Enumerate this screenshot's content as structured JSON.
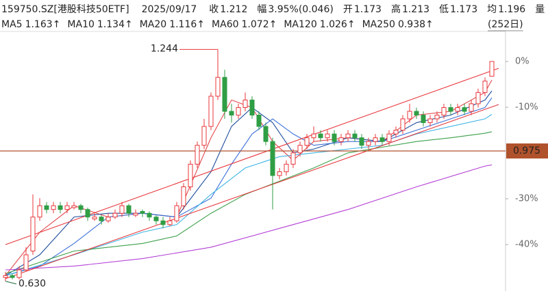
{
  "chart_data": {
    "type": "candlestick",
    "quote": {
      "symbol": "159750.SZ[港股科技50ETF]",
      "date": "2025/09/17",
      "close_label": "收",
      "close": 1.212,
      "change_label": "幅",
      "change": "3.95%(0.046)",
      "open_label": "开",
      "open": 1.173,
      "high_label": "高",
      "high": 1.213,
      "low_label": "低",
      "low": 1.173,
      "avg_label": "均",
      "avg": 1.196,
      "volume_label": "量"
    },
    "period": "(252日)",
    "up_color": "#e8353a",
    "down_color": "#2f9e44",
    "ylim": [
      0.615,
      1.288
    ],
    "yticks": [
      {
        "value": 0,
        "label": "0%"
      },
      {
        "value": -10,
        "label": "-10%"
      },
      {
        "value": -30,
        "label": "-30%"
      },
      {
        "value": -40,
        "label": "-40%"
      }
    ],
    "candles": [
      [
        0.64,
        0.655,
        0.63,
        0.645
      ],
      [
        0.645,
        0.65,
        0.635,
        0.64
      ],
      [
        0.64,
        0.67,
        0.635,
        0.66
      ],
      [
        0.66,
        0.72,
        0.655,
        0.7
      ],
      [
        0.71,
        0.86,
        0.7,
        0.8
      ],
      [
        0.8,
        0.85,
        0.79,
        0.83
      ],
      [
        0.83,
        0.84,
        0.81,
        0.82
      ],
      [
        0.82,
        0.84,
        0.81,
        0.83
      ],
      [
        0.83,
        0.84,
        0.81,
        0.82
      ],
      [
        0.82,
        0.84,
        0.81,
        0.83
      ],
      [
        0.825,
        0.84,
        0.82,
        0.83
      ],
      [
        0.83,
        0.835,
        0.81,
        0.82
      ],
      [
        0.82,
        0.825,
        0.79,
        0.8
      ],
      [
        0.795,
        0.81,
        0.79,
        0.8
      ],
      [
        0.8,
        0.805,
        0.78,
        0.79
      ],
      [
        0.79,
        0.81,
        0.785,
        0.8
      ],
      [
        0.8,
        0.82,
        0.795,
        0.81
      ],
      [
        0.81,
        0.84,
        0.8,
        0.83
      ],
      [
        0.83,
        0.835,
        0.8,
        0.81
      ],
      [
        0.805,
        0.82,
        0.8,
        0.81
      ],
      [
        0.815,
        0.82,
        0.8,
        0.81
      ],
      [
        0.81,
        0.815,
        0.79,
        0.8
      ],
      [
        0.8,
        0.805,
        0.78,
        0.79
      ],
      [
        0.79,
        0.8,
        0.77,
        0.78
      ],
      [
        0.78,
        0.8,
        0.775,
        0.79
      ],
      [
        0.79,
        0.84,
        0.785,
        0.83
      ],
      [
        0.83,
        0.89,
        0.82,
        0.88
      ],
      [
        0.88,
        0.95,
        0.87,
        0.94
      ],
      [
        0.94,
        1.0,
        0.93,
        0.99
      ],
      [
        0.99,
        1.06,
        0.98,
        1.04
      ],
      [
        1.04,
        1.13,
        1.03,
        1.12
      ],
      [
        1.12,
        1.244,
        1.11,
        1.17
      ],
      [
        1.17,
        1.19,
        1.06,
        1.08
      ],
      [
        1.08,
        1.1,
        1.05,
        1.07
      ],
      [
        1.07,
        1.1,
        1.06,
        1.09
      ],
      [
        1.09,
        1.13,
        1.08,
        1.11
      ],
      [
        1.11,
        1.12,
        1.06,
        1.07
      ],
      [
        1.07,
        1.08,
        1.03,
        1.04
      ],
      [
        1.04,
        1.05,
        0.99,
        1.0
      ],
      [
        1.0,
        1.01,
        0.82,
        0.91
      ],
      [
        0.91,
        0.93,
        0.9,
        0.92
      ],
      [
        0.92,
        0.95,
        0.91,
        0.94
      ],
      [
        0.94,
        0.98,
        0.93,
        0.97
      ],
      [
        0.97,
        1.0,
        0.96,
        0.99
      ],
      [
        0.99,
        1.02,
        0.98,
        1.01
      ],
      [
        1.01,
        1.04,
        1.0,
        1.02
      ],
      [
        1.02,
        1.03,
        1.0,
        1.01
      ],
      [
        1.01,
        1.03,
        1.0,
        1.02
      ],
      [
        1.02,
        1.03,
        0.99,
        1.0
      ],
      [
        1.0,
        1.02,
        0.99,
        1.01
      ],
      [
        1.01,
        1.03,
        1.0,
        1.02
      ],
      [
        1.02,
        1.03,
        1.0,
        1.01
      ],
      [
        1.01,
        1.02,
        0.98,
        0.99
      ],
      [
        0.99,
        1.01,
        0.98,
        1.0
      ],
      [
        1.0,
        1.02,
        0.99,
        1.01
      ],
      [
        1.01,
        1.02,
        0.99,
        1.0
      ],
      [
        1.0,
        1.03,
        0.99,
        1.02
      ],
      [
        1.02,
        1.04,
        1.01,
        1.03
      ],
      [
        1.03,
        1.07,
        1.02,
        1.06
      ],
      [
        1.06,
        1.1,
        1.05,
        1.08
      ],
      [
        1.08,
        1.09,
        1.06,
        1.07
      ],
      [
        1.07,
        1.08,
        1.04,
        1.05
      ],
      [
        1.05,
        1.07,
        1.04,
        1.06
      ],
      [
        1.06,
        1.08,
        1.05,
        1.07
      ],
      [
        1.07,
        1.1,
        1.06,
        1.09
      ],
      [
        1.09,
        1.1,
        1.07,
        1.08
      ],
      [
        1.08,
        1.1,
        1.07,
        1.09
      ],
      [
        1.09,
        1.1,
        1.07,
        1.08
      ],
      [
        1.08,
        1.11,
        1.07,
        1.1
      ],
      [
        1.1,
        1.14,
        1.09,
        1.13
      ],
      [
        1.13,
        1.17,
        1.12,
        1.16
      ],
      [
        1.173,
        1.213,
        1.173,
        1.212
      ]
    ],
    "min_label": "0.630",
    "ma_lines": [
      {
        "name": "MA5",
        "latest": 1.163,
        "arrow": "↑",
        "color": "#e2474b",
        "x": [
          0,
          5,
          10,
          15,
          20,
          25,
          30,
          33,
          36,
          39,
          42,
          45,
          50,
          55,
          60,
          65,
          70,
          71
        ],
        "values": [
          0.645,
          0.76,
          0.83,
          0.8,
          0.81,
          0.8,
          1.01,
          1.11,
          1.09,
          1.0,
          0.95,
          1.0,
          1.01,
          1.0,
          1.07,
          1.08,
          1.13,
          1.163
        ]
      },
      {
        "name": "MA10",
        "latest": 1.134,
        "arrow": "↑",
        "color": "#1f4e9c",
        "x": [
          0,
          5,
          10,
          15,
          20,
          25,
          30,
          33,
          36,
          39,
          42,
          45,
          50,
          55,
          60,
          65,
          70,
          71
        ],
        "values": [
          0.645,
          0.7,
          0.8,
          0.81,
          0.81,
          0.8,
          0.92,
          1.04,
          1.09,
          1.05,
          0.97,
          0.98,
          1.01,
          1.0,
          1.05,
          1.07,
          1.11,
          1.134
        ]
      },
      {
        "name": "MA20",
        "latest": 1.116,
        "arrow": "↑",
        "color": "#3a6fd8",
        "x": [
          0,
          5,
          10,
          15,
          20,
          25,
          30,
          33,
          36,
          39,
          42,
          45,
          50,
          55,
          60,
          65,
          70,
          71
        ],
        "values": [
          0.645,
          0.67,
          0.73,
          0.8,
          0.81,
          0.8,
          0.85,
          0.94,
          1.02,
          1.06,
          1.02,
          0.99,
          1.0,
          1.0,
          1.03,
          1.06,
          1.09,
          1.116
        ]
      },
      {
        "name": "MA60",
        "latest": 1.072,
        "arrow": "↑",
        "color": "#3fb4e6",
        "x": [
          0,
          10,
          20,
          25,
          30,
          35,
          40,
          45,
          50,
          55,
          60,
          65,
          70,
          71
        ],
        "values": [
          0.645,
          0.7,
          0.76,
          0.78,
          0.86,
          0.93,
          0.96,
          0.97,
          0.98,
          0.99,
          1.02,
          1.04,
          1.06,
          1.072
        ]
      },
      {
        "name": "MA120",
        "latest": 1.026,
        "arrow": "↑",
        "color": "#3c9f4a",
        "x": [
          0,
          10,
          20,
          25,
          30,
          35,
          40,
          45,
          50,
          55,
          60,
          65,
          70,
          71
        ],
        "values": [
          0.65,
          0.71,
          0.73,
          0.75,
          0.81,
          0.86,
          0.895,
          0.93,
          0.97,
          0.985,
          1.0,
          1.01,
          1.022,
          1.026
        ]
      },
      {
        "name": "MA250",
        "latest": 0.938,
        "arrow": "↑",
        "color": "#b43fd6",
        "x": [
          0,
          10,
          20,
          30,
          40,
          50,
          60,
          70,
          71
        ],
        "values": [
          0.66,
          0.67,
          0.69,
          0.72,
          0.77,
          0.82,
          0.88,
          0.935,
          0.938
        ]
      }
    ],
    "channel_color": "#e8353a",
    "channel": [
      {
        "x": [
          0,
          72
        ],
        "values": [
          0.727,
          1.194
        ]
      },
      {
        "x": [
          0,
          72
        ],
        "values": [
          0.637,
          1.098
        ]
      }
    ],
    "hline": 0.975,
    "hline_color": "#b0522c"
  }
}
